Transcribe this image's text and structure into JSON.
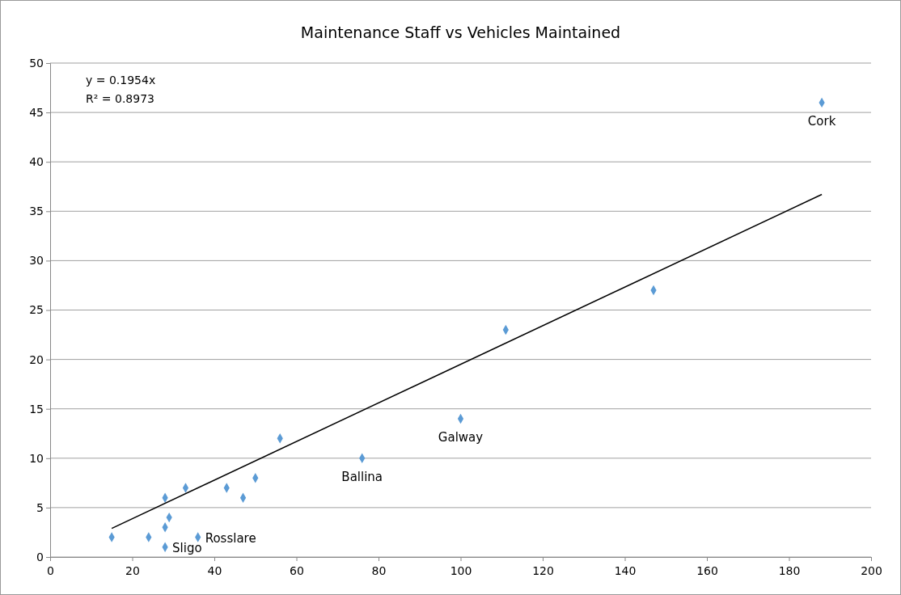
{
  "chart_data": {
    "type": "scatter",
    "title": "Maintenance Staff vs Vehicles Maintained",
    "xlim": [
      0,
      200
    ],
    "xticks": [
      0,
      20,
      40,
      60,
      80,
      100,
      120,
      140,
      160,
      180,
      200
    ],
    "ylim": [
      0,
      50
    ],
    "yticks": [
      0,
      5,
      10,
      15,
      20,
      25,
      30,
      35,
      40,
      45,
      50
    ],
    "grid": "y",
    "series": [
      {
        "marker": "diamond",
        "color": "#5b9bd5",
        "x": [
          15,
          24,
          28,
          28,
          28,
          29,
          33,
          36,
          43,
          47,
          50,
          56,
          76,
          100,
          111,
          147,
          188
        ],
        "values": [
          2,
          2,
          3,
          1,
          6,
          4,
          7,
          2,
          7,
          6,
          8,
          12,
          10,
          14,
          23,
          27,
          46
        ]
      },
      {
        "type": "line",
        "color": "#000000",
        "x": [
          15,
          188
        ],
        "values": [
          2.9,
          36.7
        ]
      }
    ],
    "annotations": [
      "y = 0.1954x",
      "R² = 0.8973",
      {
        "text": "Cork",
        "x": 188,
        "y": 46
      },
      {
        "text": "Galway",
        "x": 100,
        "y": 14
      },
      {
        "text": "Ballina",
        "x": 76,
        "y": 10
      },
      {
        "text": "Rosslare",
        "x": 36,
        "y": 2
      },
      {
        "text": "Sligo",
        "x": 28,
        "y": 1
      }
    ]
  }
}
